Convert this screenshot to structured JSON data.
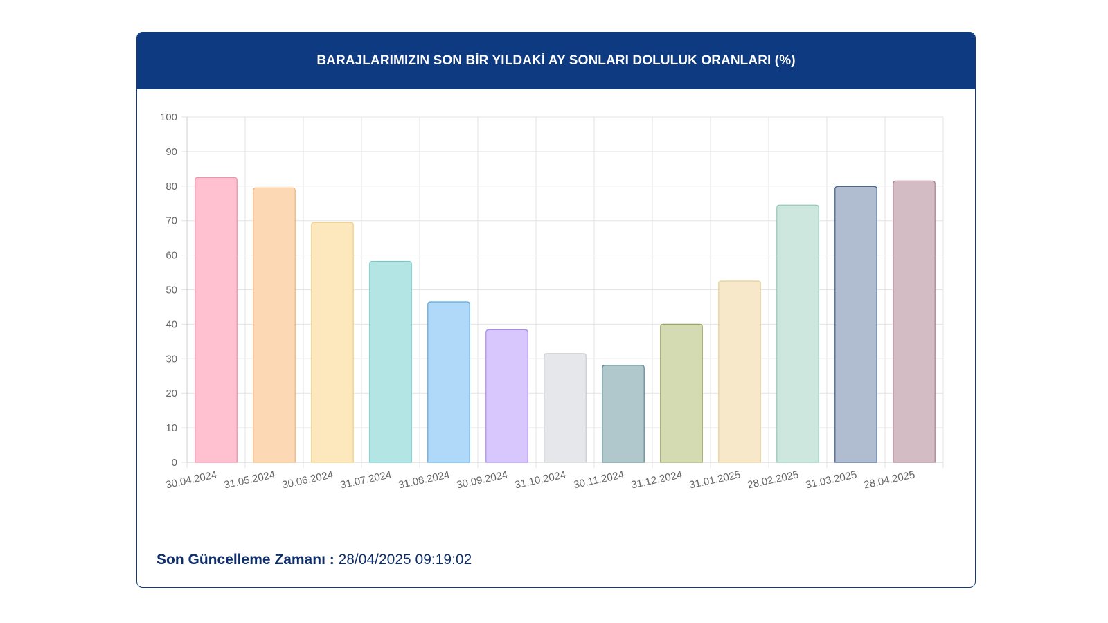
{
  "card": {
    "title": "BARAJLARIMIZIN SON BİR YILDAKİ AY SONLARI DOLULUK ORANLARI (%)"
  },
  "footer": {
    "label": "Son Güncelleme Zamanı :",
    "value": "28/04/2025 09:19:02"
  },
  "colors": {
    "header_bg": "#0e3a81",
    "footer_text": "#0d2e6b"
  },
  "chart_data": {
    "type": "bar",
    "title": "BARAJLARIMIZIN SON BİR YILDAKİ AY SONLARI DOLULUK ORANLARI (%)",
    "xlabel": "",
    "ylabel": "",
    "ylim": [
      0,
      100
    ],
    "yticks": [
      0,
      10,
      20,
      30,
      40,
      50,
      60,
      70,
      80,
      90,
      100
    ],
    "grid": true,
    "legend": "none",
    "categories": [
      "30.04.2024",
      "31.05.2024",
      "30.06.2024",
      "31.07.2024",
      "31.08.2024",
      "30.09.2024",
      "31.10.2024",
      "30.11.2024",
      "31.12.2024",
      "31.01.2025",
      "28.02.2025",
      "31.03.2025",
      "28.04.2025"
    ],
    "values": [
      82.5,
      79.5,
      69.5,
      58.2,
      46.5,
      38.4,
      31.5,
      28.1,
      40.0,
      52.5,
      74.5,
      79.9,
      81.5
    ],
    "fill_colors": [
      "#ffc0cf",
      "#fdd8b5",
      "#fde7bd",
      "#b3e5e4",
      "#b0d8f8",
      "#d7c7fd",
      "#e5e7ea",
      "#b0c8cc",
      "#d4dab2",
      "#f6e8c8",
      "#cde6de",
      "#b0bcd0",
      "#d4bcc4"
    ],
    "border_colors": [
      "#f08aa5",
      "#f0b27a",
      "#f2cf80",
      "#6fc9c7",
      "#5ba7e0",
      "#a889f0",
      "#c6c9ce",
      "#5c8590",
      "#9ba460",
      "#e6cf95",
      "#8ccbb8",
      "#3e5a88",
      "#a87c8c"
    ]
  }
}
